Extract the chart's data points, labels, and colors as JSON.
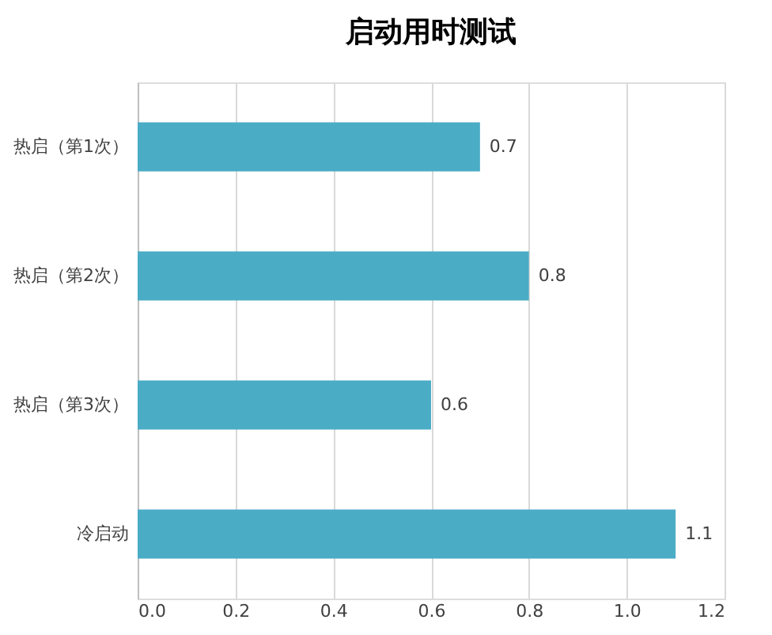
{
  "chart_data": {
    "type": "bar",
    "orientation": "horizontal",
    "title": "启动用时测试",
    "categories": [
      "热启（第1次）",
      "热启（第2次）",
      "热启（第3次）",
      "冷启动"
    ],
    "values": [
      0.7,
      0.8,
      0.6,
      1.1
    ],
    "color": "#4bacc6",
    "xlim": [
      0,
      1.2
    ],
    "xticks": [
      {
        "value": 0,
        "label": "0.0"
      },
      {
        "value": 0.2,
        "label": "0.2"
      },
      {
        "value": 0.4,
        "label": "0.4"
      },
      {
        "value": 0.6,
        "label": "0.6"
      },
      {
        "value": 0.8,
        "label": "0.8"
      },
      {
        "value": 1.0,
        "label": "1.0"
      },
      {
        "value": 1.2,
        "label": "1.2"
      }
    ],
    "grid": "x",
    "data_labels": true
  }
}
